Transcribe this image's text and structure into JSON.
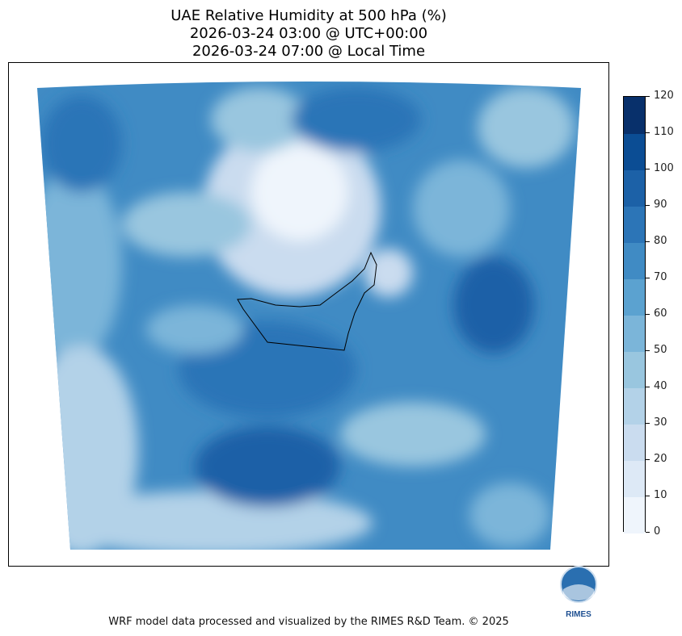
{
  "title": {
    "line1": "UAE Relative Humidity at 500 hPa (%)",
    "line2": "2026-03-24 03:00 @ UTC+00:00",
    "line3": "2026-03-24 07:00 @ Local Time"
  },
  "colorbar": {
    "ticks": [
      "0",
      "10",
      "20",
      "30",
      "40",
      "50",
      "60",
      "70",
      "80",
      "90",
      "100",
      "110",
      "120"
    ],
    "colors": [
      "#eff5fc",
      "#dde9f6",
      "#cadcef",
      "#b3d2e8",
      "#99c6df",
      "#7bb5d9",
      "#5ba2d0",
      "#408bc4",
      "#2c75b7",
      "#1c61a7",
      "#0b4d94",
      "#08306b"
    ]
  },
  "logo": {
    "text": "RIMES"
  },
  "footer": "WRF model data processed and visualized by the RIMES R&D Team. © 2025"
}
